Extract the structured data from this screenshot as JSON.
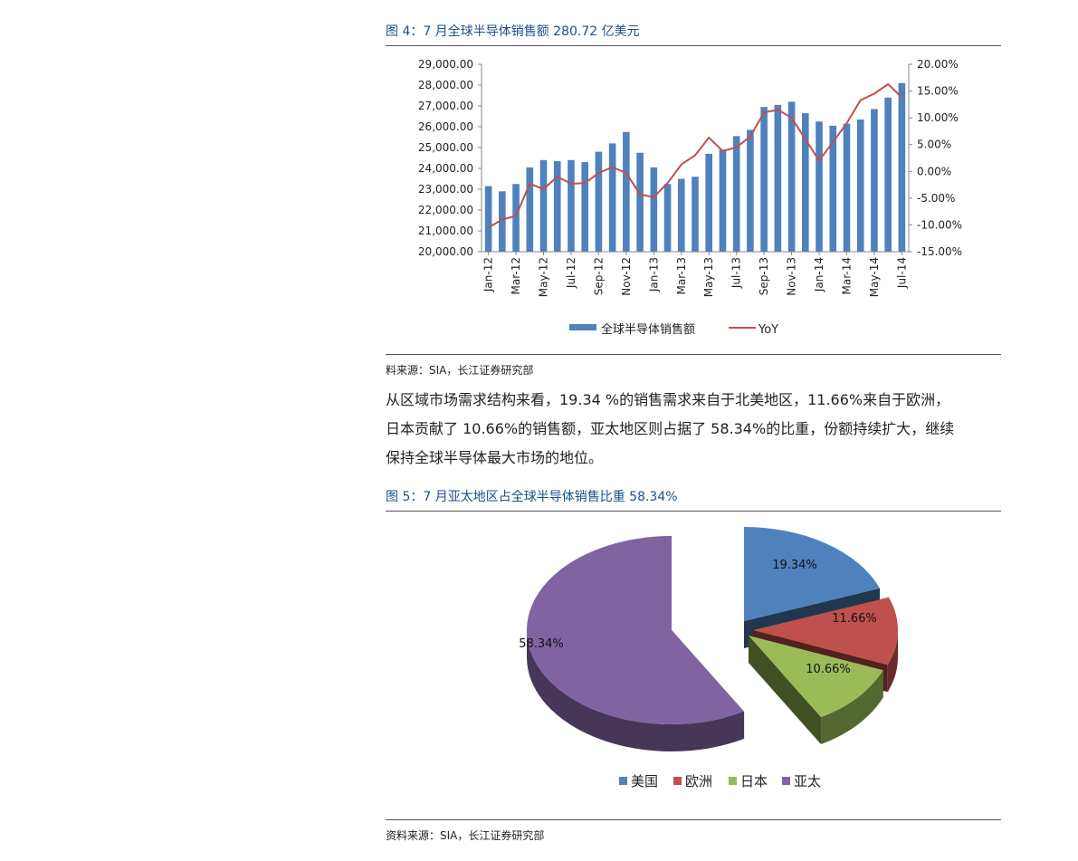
{
  "figure1": {
    "title": "图 4：7 月全球半导体销售额 280.72 亿美元",
    "source": "料来源：SIA，长江证券研究部"
  },
  "paragraph": {
    "lines": [
      "从区域市场需求结构来看，19.34 %的销售需求来自于北美地区，11.66%来自于欧洲，",
      "日本贡献了 10.66%的销售额，亚太地区则占据了 58.34%的比重，份额持续扩大，继续",
      "保持全球半导体最大市场的地位。"
    ]
  },
  "figure2": {
    "title": "图 5：7 月亚太地区占全球半导体销售比重 58.34%",
    "source": "资料来源：SIA，长江证券研究部"
  },
  "chart_data": [
    {
      "type": "bar",
      "title": "",
      "categories": [
        "Jan-12",
        "Feb-12",
        "Mar-12",
        "Apr-12",
        "May-12",
        "Jun-12",
        "Jul-12",
        "Aug-12",
        "Sep-12",
        "Oct-12",
        "Nov-12",
        "Dec-12",
        "Jan-13",
        "Feb-13",
        "Mar-13",
        "Apr-13",
        "May-13",
        "Jun-13",
        "Jul-13",
        "Aug-13",
        "Sep-13",
        "Oct-13",
        "Nov-13",
        "Dec-13",
        "Jan-14",
        "Feb-14",
        "Mar-14",
        "Apr-14",
        "May-14",
        "Jun-14",
        "Jul-14"
      ],
      "tick_labels": [
        "Jan-12",
        "Mar-12",
        "May-12",
        "Jul-12",
        "Sep-12",
        "Nov-12",
        "Jan-13",
        "Mar-13",
        "May-13",
        "Jul-13",
        "Sep-13",
        "Nov-13",
        "Jan-14",
        "Mar-14",
        "May-14",
        "Jul-14"
      ],
      "y_ticks": [
        "29,000.00",
        "28,000.00",
        "27,000.00",
        "26,000.00",
        "25,000.00",
        "24,000.00",
        "23,000.00",
        "22,000.00",
        "21,000.00",
        "20,000.00"
      ],
      "y2_ticks": [
        "20.00%",
        "15.00%",
        "10.00%",
        "5.00%",
        "0.00%",
        "-5.00%",
        "-10.00%",
        "-15.00%"
      ],
      "ylim": [
        20000,
        29000
      ],
      "y2lim": [
        -15,
        20
      ],
      "series": [
        {
          "name": "全球半导体销售额",
          "kind": "bar",
          "color": "#4f81bd",
          "values": [
            23150,
            22900,
            23250,
            24050,
            24400,
            24350,
            24400,
            24300,
            24800,
            25200,
            25750,
            24750,
            24050,
            23250,
            23500,
            23600,
            24700,
            24900,
            25550,
            25850,
            26950,
            27050,
            27200,
            26650,
            26250,
            26050,
            26150,
            26350,
            26850,
            27400,
            28100
          ]
        },
        {
          "name": "YoY",
          "kind": "line",
          "color": "#c0504d",
          "values": [
            -10.5,
            -9.0,
            -8.3,
            -2.3,
            -3.3,
            -1.0,
            -2.3,
            -2.2,
            -0.3,
            0.8,
            -0.3,
            -4.3,
            -4.8,
            -2.2,
            1.3,
            3.0,
            6.3,
            3.8,
            4.5,
            6.5,
            11.0,
            11.5,
            10.0,
            6.0,
            2.0,
            5.5,
            9.0,
            13.3,
            14.5,
            16.3,
            13.8
          ]
        }
      ]
    },
    {
      "type": "pie",
      "title": "",
      "categories": [
        "美国",
        "欧洲",
        "日本",
        "亚太"
      ],
      "values": [
        19.34,
        11.66,
        10.66,
        58.34
      ],
      "labels": [
        "19.34%",
        "11.66%",
        "10.66%",
        "58.34%"
      ],
      "colors": [
        "#4f81bd",
        "#c0504d",
        "#9bbb59",
        "#8064a2"
      ],
      "legend_position": "bottom"
    }
  ]
}
